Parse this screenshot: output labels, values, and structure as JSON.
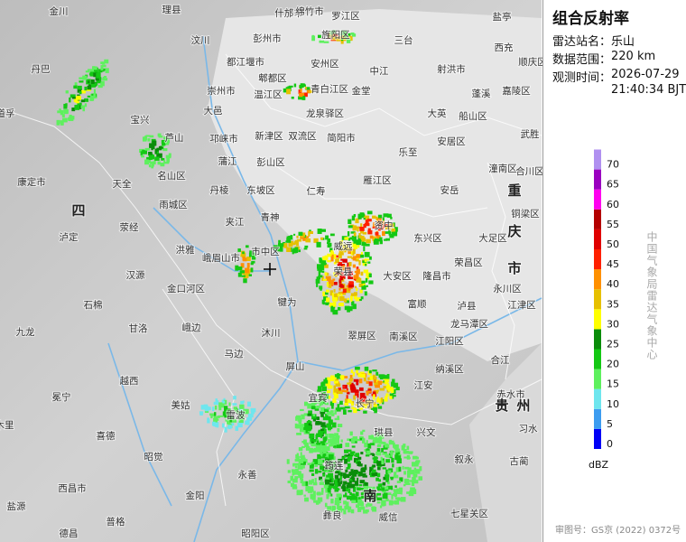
{
  "panel": {
    "title": "组合反射率",
    "station_label": "雷达站名：",
    "station": "乐山",
    "range_label": "数据范围：",
    "range": "220 km",
    "time_label": "观测时间：",
    "date": "2026-07-29",
    "time": "21:40:34 BJT"
  },
  "legend": {
    "unit": "dBZ",
    "ticks": [
      0,
      5,
      10,
      15,
      20,
      25,
      30,
      35,
      40,
      45,
      50,
      55,
      60,
      65,
      70
    ],
    "colors": [
      "#0000f6",
      "#3c9cf0",
      "#6ee6ee",
      "#5ef05e",
      "#14c814",
      "#0a8c0a",
      "#ffff00",
      "#e6c000",
      "#ff9000",
      "#ff2000",
      "#e00000",
      "#b40000",
      "#ff00f0",
      "#9a00c0",
      "#b090f0"
    ]
  },
  "credit": "中国气象局雷达气象中心",
  "approval": "审图号：GS京 (2022) 0372号",
  "map": {
    "places": [
      "金川",
      "理县",
      "汶川",
      "丹巴",
      "什邡市",
      "绵竹市",
      "罗江区",
      "三台",
      "盐亭",
      "彭州市",
      "都江堰市",
      "郫都区",
      "旌阳区",
      "青白江区",
      "金堂",
      "中江",
      "射洪市",
      "西充",
      "顺庆区",
      "嘉陵区",
      "蓬溪",
      "大英",
      "船山区",
      "崇州市",
      "温江区",
      "龙泉驿区",
      "大邑",
      "宝兴",
      "芦山",
      "邛崃市",
      "新津区",
      "双流区",
      "简阳市",
      "乐至",
      "安居区",
      "武胜",
      "名山区",
      "蒲江",
      "彭山区",
      "潼南区",
      "合川区",
      "康定市",
      "天全",
      "雨城区",
      "丹棱",
      "东坡区",
      "仁寿",
      "雁江区",
      "安岳",
      "铜梁区",
      "四",
      "泸定",
      "荥经",
      "夹江",
      "青神",
      "资中",
      "东兴区",
      "大足区",
      "重",
      "庆",
      "市",
      "洪雅",
      "峨眉山市",
      "市中区",
      "威远",
      "荣县",
      "大安区",
      "隆昌市",
      "荣昌区",
      "永川区",
      "汉源",
      "金口河区",
      "犍为",
      "富顺",
      "泸县",
      "江津区",
      "石棉",
      "甘洛",
      "峨边",
      "沐川",
      "翠屏区",
      "南溪区",
      "江阳区",
      "龙马潭区",
      "九龙",
      "马边",
      "屏山",
      "纳溪区",
      "合江",
      "越西",
      "美姑",
      "雷波",
      "江安",
      "冕宁",
      "长宁",
      "珙县",
      "兴文",
      "叙永",
      "赤水市",
      "贵",
      "州",
      "习水",
      "喜德",
      "昭觉",
      "永善",
      "筠连",
      "古蔺",
      "西昌市",
      "金阳",
      "盐源",
      "普格",
      "德昌",
      "昭阳区",
      "彝良",
      "威信",
      "七星关区",
      "南",
      "木里",
      "道孚",
      "安州区",
      "宜宾"
    ]
  }
}
